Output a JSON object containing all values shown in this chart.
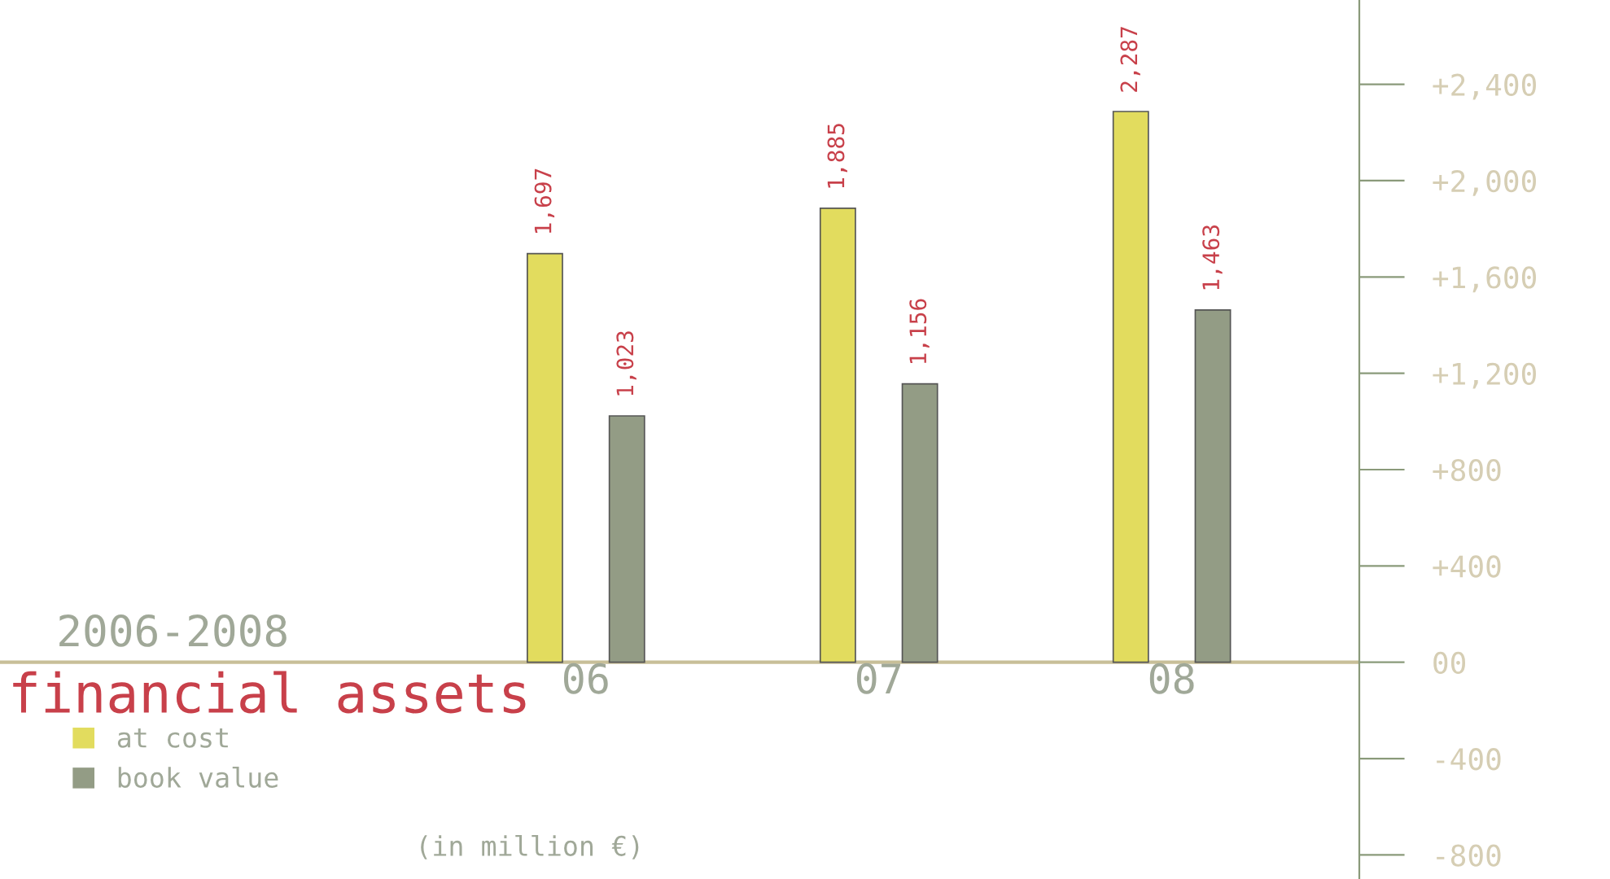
{
  "chart_data": {
    "type": "bar",
    "title": "financial assets",
    "subtitle": "2006-2008",
    "annotations": [
      "(in million €)"
    ],
    "categories": [
      "06",
      "07",
      "08"
    ],
    "series": [
      {
        "name": "at cost",
        "color": "#e2dc5e",
        "values": [
          1697,
          1885,
          2287
        ],
        "value_labels": [
          "1,697",
          "1,885",
          "2,287"
        ]
      },
      {
        "name": "book value",
        "color": "#939c85",
        "values": [
          1023,
          1156,
          1463
        ],
        "value_labels": [
          "1,023",
          "1,156",
          "1,463"
        ]
      }
    ],
    "legend": "bottom left",
    "grid": false,
    "ylim": [
      -900,
      2750
    ],
    "yticks": [
      {
        "value": 2400,
        "label": "+2,400"
      },
      {
        "value": 2000,
        "label": "+2,000"
      },
      {
        "value": 1600,
        "label": "+1,600"
      },
      {
        "value": 1200,
        "label": "+1,200"
      },
      {
        "value": 800,
        "label": "+800"
      },
      {
        "value": 400,
        "label": "+400"
      },
      {
        "value": 0,
        "label": "00"
      },
      {
        "value": -400,
        "label": "-400"
      },
      {
        "value": -800,
        "label": "-800"
      }
    ]
  }
}
